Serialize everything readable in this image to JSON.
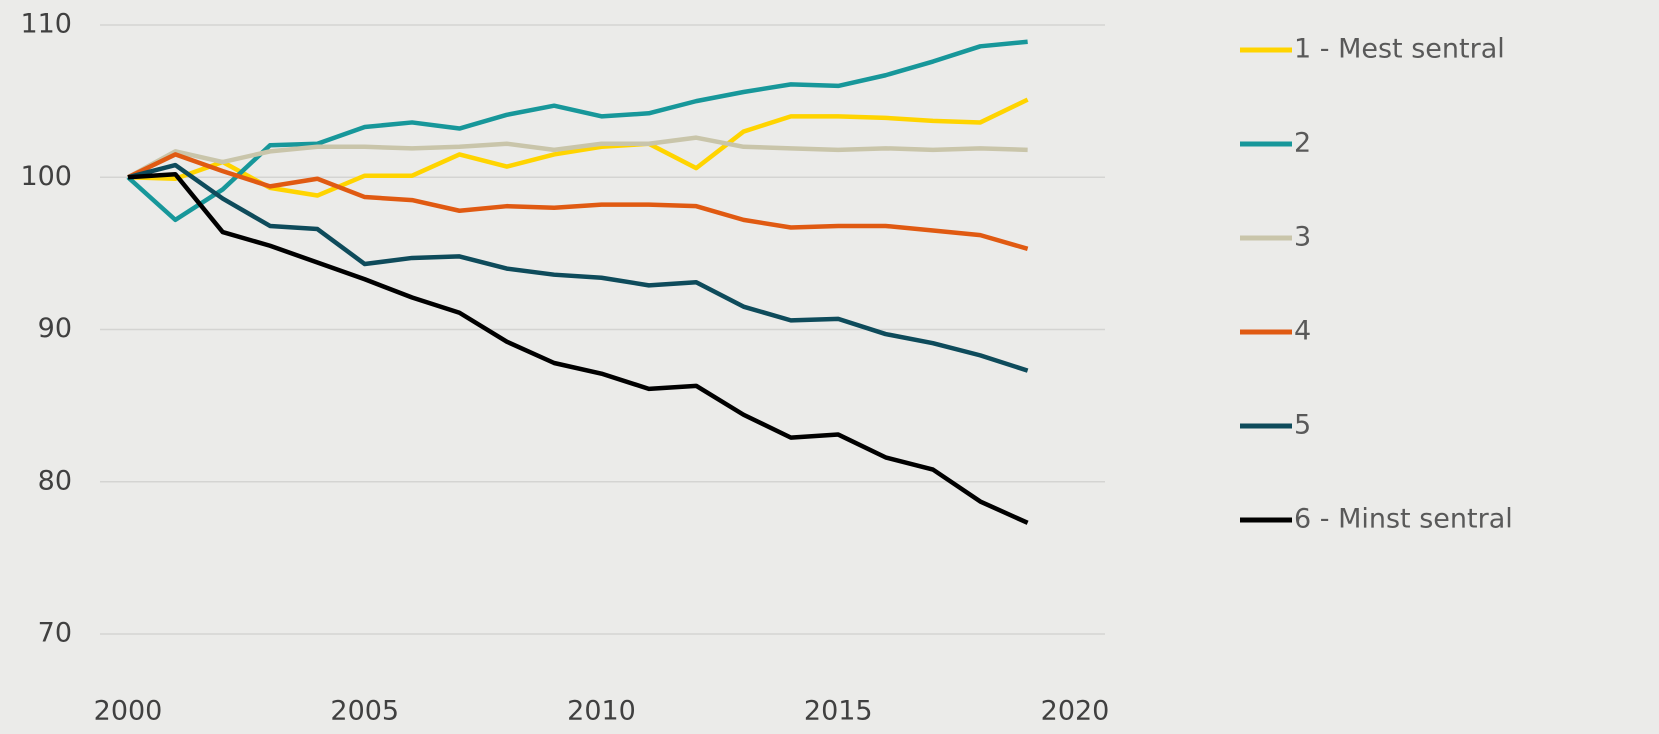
{
  "chart_data": {
    "type": "line",
    "x": [
      2000,
      2001,
      2002,
      2003,
      2004,
      2005,
      2006,
      2007,
      2008,
      2009,
      2010,
      2011,
      2012,
      2013,
      2014,
      2015,
      2016,
      2017,
      2018,
      2019
    ],
    "series": [
      {
        "name": "1 - Mest sentral",
        "color": "#ffd400",
        "values": [
          100,
          99.9,
          101,
          99.3,
          98.8,
          100.1,
          100.1,
          101.5,
          100.7,
          101.5,
          102,
          102.2,
          100.6,
          103,
          104,
          104,
          103.9,
          103.7,
          103.6,
          105.1
        ]
      },
      {
        "name": "2",
        "color": "#17979a",
        "values": [
          100,
          97.2,
          99.2,
          102.1,
          102.2,
          103.3,
          103.6,
          103.2,
          104.1,
          104.7,
          104,
          104.2,
          105,
          105.6,
          106.1,
          106,
          106.7,
          107.6,
          108.6,
          108.9
        ]
      },
      {
        "name": "3",
        "color": "#c9c5aa",
        "values": [
          100,
          101.7,
          101,
          101.7,
          102,
          102,
          101.9,
          102,
          102.2,
          101.8,
          102.2,
          102.2,
          102.6,
          102,
          101.9,
          101.8,
          101.9,
          101.8,
          101.9,
          101.8
        ]
      },
      {
        "name": "4",
        "color": "#e05a12",
        "values": [
          100,
          101.5,
          100.4,
          99.4,
          99.9,
          98.7,
          98.5,
          97.8,
          98.1,
          98,
          98.2,
          98.2,
          98.1,
          97.2,
          96.7,
          96.8,
          96.8,
          96.5,
          96.2,
          95.3
        ]
      },
      {
        "name": "5",
        "color": "#0e4b5b",
        "values": [
          100,
          100.8,
          98.6,
          96.8,
          96.6,
          94.3,
          94.7,
          94.8,
          94,
          93.6,
          93.4,
          92.9,
          93.1,
          91.5,
          90.6,
          90.7,
          89.7,
          89.1,
          88.3,
          87.3
        ]
      },
      {
        "name": "6 - Minst sentral",
        "color": "#000000",
        "values": [
          100,
          100.2,
          96.4,
          95.5,
          94.4,
          93.3,
          92.1,
          91.1,
          89.2,
          87.8,
          87.1,
          86.1,
          86.3,
          84.4,
          82.9,
          83.1,
          81.6,
          80.8,
          78.7,
          77.3
        ]
      }
    ],
    "xlim": [
      2000,
      2020
    ],
    "xticks": [
      2000,
      2005,
      2010,
      2015,
      2020
    ],
    "ylim": [
      70,
      110
    ],
    "yticks": [
      70,
      80,
      90,
      100,
      110
    ],
    "grid": true,
    "legend": "right"
  }
}
